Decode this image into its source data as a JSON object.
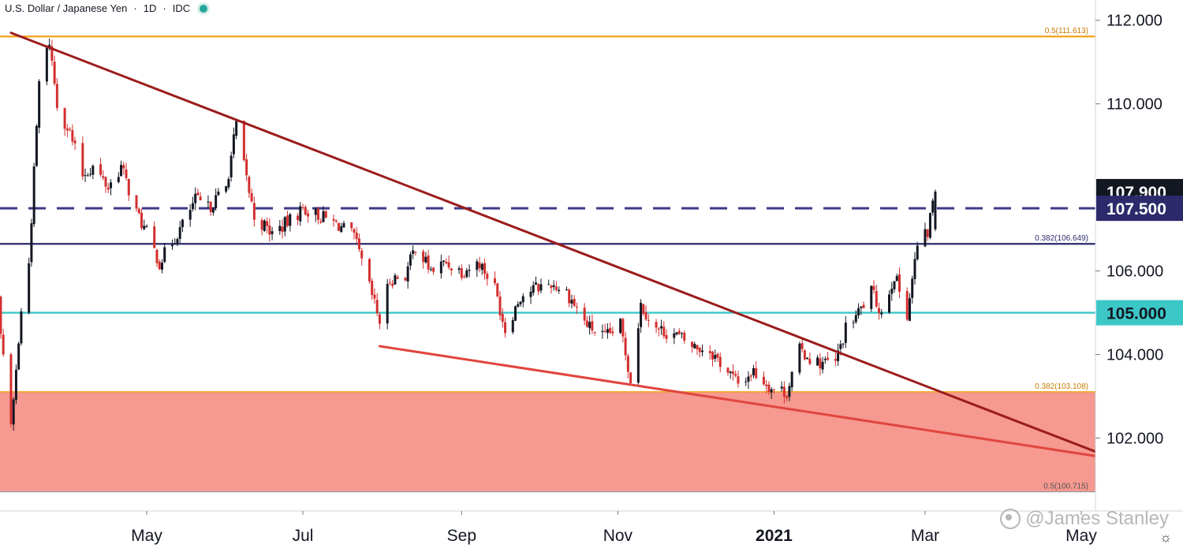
{
  "header": {
    "symbol_title": "U.S. Dollar / Japanese Yen",
    "interval": "1D",
    "source": "IDC"
  },
  "watermark": "@James Stanley",
  "icons": {
    "status": "status-dot-icon",
    "settings": "gear-icon",
    "logo": "weibo-logo-icon"
  },
  "colors": {
    "up": "#131722",
    "down": "#d32f2f",
    "fib_orange": "#f5a31a",
    "fib_navy": "#2c2a6b",
    "support_teal": "#3cc7c7",
    "resistance_dash": "#3d3b85",
    "trend_dark": "#9b1c1c",
    "trend_light": "#e0463f",
    "zone_fill": "#f5938a"
  },
  "chart_data": {
    "type": "candlestick",
    "title": "U.S. Dollar / Japanese Yen · 1D · IDC",
    "ylim": [
      100.5,
      112.25
    ],
    "price_ticks": [
      "112.000",
      "110.000",
      "106.000",
      "104.000",
      "102.000"
    ],
    "time_ticks": [
      {
        "label": "May",
        "date": "2020-05-01",
        "bold": false
      },
      {
        "label": "Jul",
        "date": "2020-07-01",
        "bold": false
      },
      {
        "label": "Sep",
        "date": "2020-09-01",
        "bold": false
      },
      {
        "label": "Nov",
        "date": "2020-11-01",
        "bold": false
      },
      {
        "label": "2021",
        "date": "2021-01-01",
        "bold": true
      },
      {
        "label": "Mar",
        "date": "2021-03-01",
        "bold": false
      },
      {
        "label": "May",
        "date": "2021-05-01",
        "bold": false
      }
    ],
    "price_labels": [
      {
        "label": "107.900",
        "value": 107.9,
        "style": "dark"
      },
      {
        "label": "107.500",
        "value": 107.5,
        "style": "navy"
      },
      {
        "label": "105.000",
        "value": 105.0,
        "style": "teal"
      }
    ],
    "horizontal_levels": [
      {
        "label": "0.5(111.613)",
        "value": 111.613,
        "style": "orange"
      },
      {
        "label": "0.382(106.649)",
        "value": 106.649,
        "style": "navy"
      },
      {
        "label": "105.000",
        "value": 105.0,
        "style": "teal"
      },
      {
        "label": "107.500",
        "value": 107.5,
        "style": "dashed"
      },
      {
        "label": "0.382(103.108)",
        "value": 103.108,
        "style": "orange-thin"
      },
      {
        "label": "0.5(100.715)",
        "value": 100.715,
        "style": "gray"
      }
    ],
    "zone": {
      "from": 100.715,
      "to": 103.108
    },
    "trendlines": [
      {
        "name": "descending-resistance",
        "from": {
          "date": "2020-03-09",
          "value": 111.7
        },
        "to": {
          "date": "2021-05-14",
          "value": 101.5
        },
        "style": "dark"
      },
      {
        "name": "descending-support",
        "from": {
          "date": "2020-07-31",
          "value": 104.2
        },
        "to": {
          "date": "2021-05-14",
          "value": 101.5
        },
        "style": "light"
      }
    ],
    "price_path": [
      [
        "2020-02-21",
        107.4
      ],
      [
        "2020-03-02",
        106.5
      ],
      [
        "2020-03-09",
        102.2
      ],
      [
        "2020-03-13",
        105.0
      ],
      [
        "2020-03-16",
        106.2
      ],
      [
        "2020-03-20",
        110.5
      ],
      [
        "2020-03-24",
        111.5
      ],
      [
        "2020-03-27",
        110.0
      ],
      [
        "2020-04-01",
        109.3
      ],
      [
        "2020-04-06",
        108.3
      ],
      [
        "2020-04-10",
        108.5
      ],
      [
        "2020-04-16",
        108.0
      ],
      [
        "2020-04-21",
        108.5
      ],
      [
        "2020-04-27",
        107.4
      ],
      [
        "2020-05-01",
        106.9
      ],
      [
        "2020-05-06",
        106.2
      ],
      [
        "2020-05-11",
        106.7
      ],
      [
        "2020-05-15",
        107.1
      ],
      [
        "2020-05-20",
        107.7
      ],
      [
        "2020-05-25",
        107.5
      ],
      [
        "2020-06-01",
        108.0
      ],
      [
        "2020-06-05",
        109.5
      ],
      [
        "2020-06-08",
        108.5
      ],
      [
        "2020-06-12",
        107.3
      ],
      [
        "2020-06-19",
        106.9
      ],
      [
        "2020-06-26",
        107.2
      ],
      [
        "2020-07-01",
        107.5
      ],
      [
        "2020-07-08",
        107.3
      ],
      [
        "2020-07-15",
        107.1
      ],
      [
        "2020-07-21",
        106.8
      ],
      [
        "2020-07-27",
        105.6
      ],
      [
        "2020-07-31",
        104.8
      ],
      [
        "2020-08-04",
        105.8
      ],
      [
        "2020-08-10",
        105.9
      ],
      [
        "2020-08-14",
        106.6
      ],
      [
        "2020-08-20",
        106.0
      ],
      [
        "2020-08-26",
        106.2
      ],
      [
        "2020-09-01",
        106.0
      ],
      [
        "2020-09-08",
        106.2
      ],
      [
        "2020-09-14",
        105.6
      ],
      [
        "2020-09-18",
        104.6
      ],
      [
        "2020-09-24",
        105.4
      ],
      [
        "2020-09-30",
        105.6
      ],
      [
        "2020-10-06",
        105.7
      ],
      [
        "2020-10-12",
        105.5
      ],
      [
        "2020-10-20",
        104.7
      ],
      [
        "2020-10-27",
        104.4
      ],
      [
        "2020-11-02",
        104.7
      ],
      [
        "2020-11-06",
        103.4
      ],
      [
        "2020-11-10",
        105.2
      ],
      [
        "2020-11-16",
        104.6
      ],
      [
        "2020-11-23",
        104.5
      ],
      [
        "2020-11-30",
        104.2
      ],
      [
        "2020-12-07",
        104.1
      ],
      [
        "2020-12-14",
        103.6
      ],
      [
        "2020-12-18",
        103.3
      ],
      [
        "2020-12-24",
        103.6
      ],
      [
        "2020-12-31",
        103.2
      ],
      [
        "2021-01-06",
        103.1
      ],
      [
        "2021-01-11",
        104.1
      ],
      [
        "2021-01-18",
        103.8
      ],
      [
        "2021-01-25",
        103.8
      ],
      [
        "2021-01-29",
        104.6
      ],
      [
        "2021-02-03",
        105.0
      ],
      [
        "2021-02-08",
        105.5
      ],
      [
        "2021-02-12",
        105.0
      ],
      [
        "2021-02-17",
        105.9
      ],
      [
        "2021-02-22",
        105.0
      ],
      [
        "2021-02-26",
        106.6
      ],
      [
        "2021-03-02",
        106.9
      ],
      [
        "2021-03-04",
        107.7
      ],
      [
        "2021-03-05",
        107.9
      ]
    ]
  }
}
